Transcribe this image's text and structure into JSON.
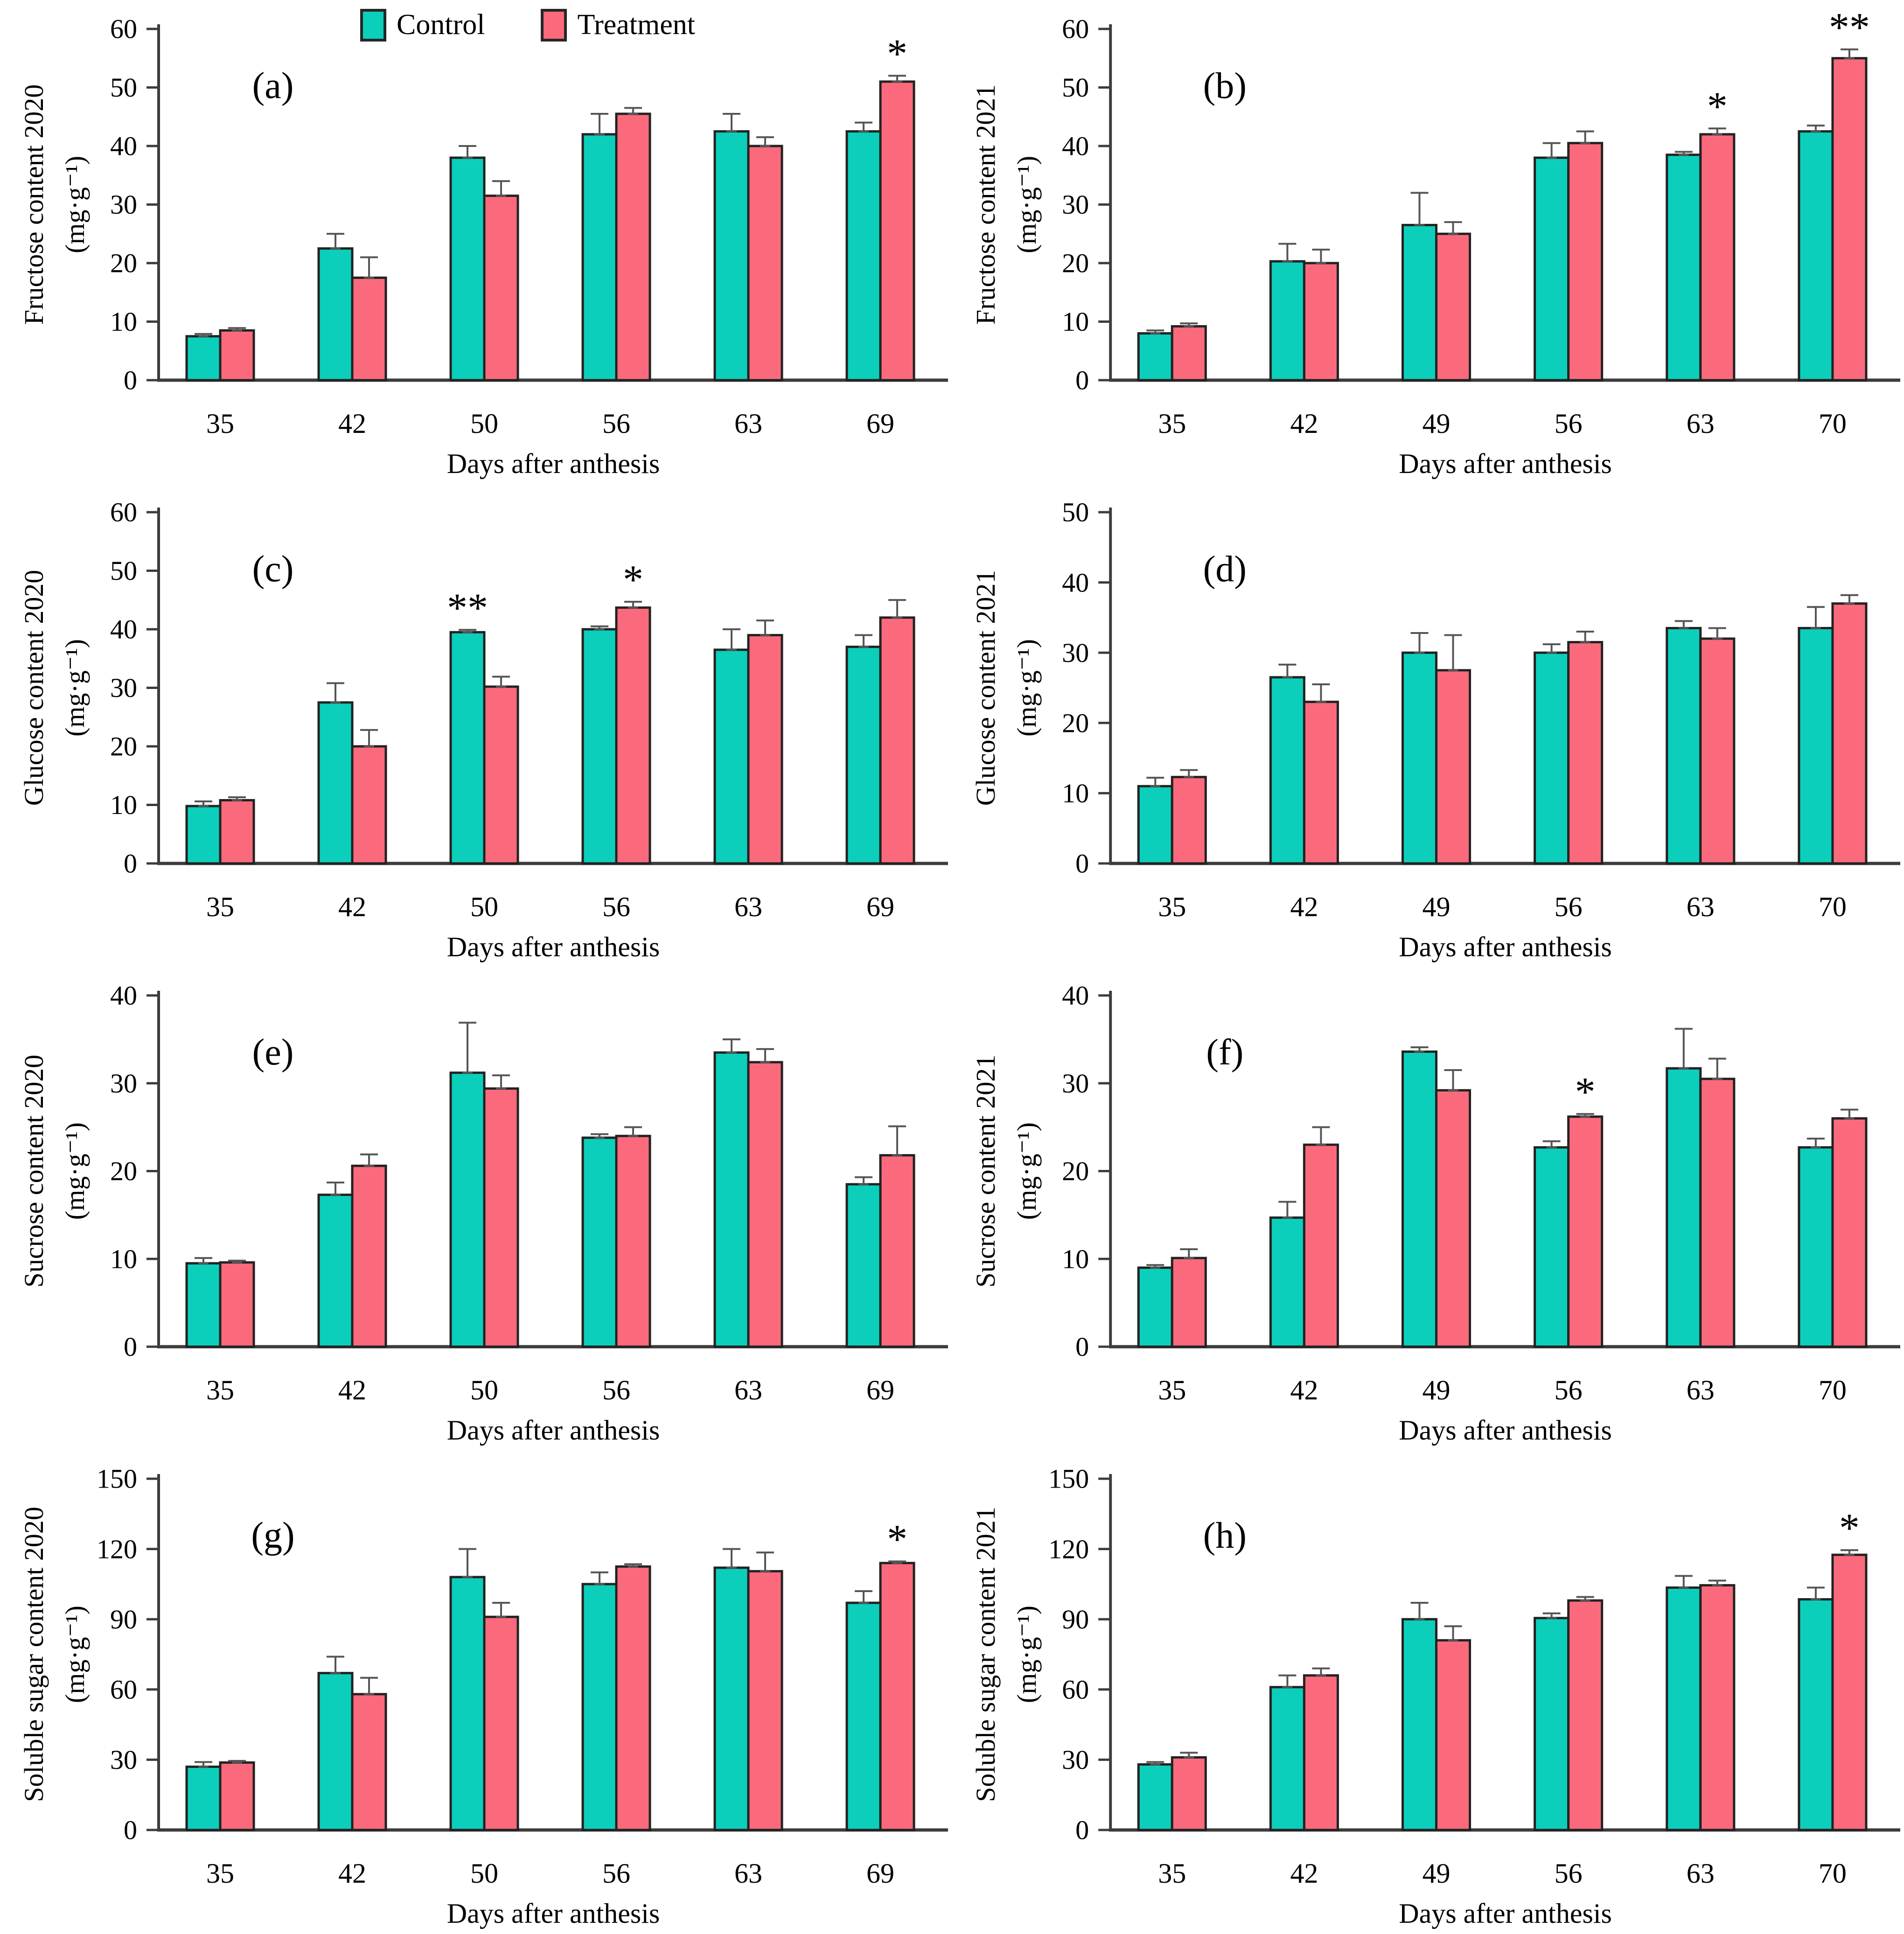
{
  "legend": {
    "items": [
      {
        "label": "Control",
        "color": "#0BCFBB"
      },
      {
        "label": "Treatment",
        "color": "#FB6A7C"
      }
    ]
  },
  "colors": {
    "control": "#0BCFBB",
    "treatment": "#FB6A7C",
    "bar_outline": "#222222",
    "axis": "#3C3C3C",
    "error_bar": "#555555",
    "text": "#000000"
  },
  "chart_data": [
    {
      "type": "bar",
      "letter": "(a)",
      "ylabel": "Fructose content 2020",
      "unit": "(mg·g⁻¹)",
      "xlabel": "Days after anthesis",
      "ylim": [
        0,
        60
      ],
      "ystep": 10,
      "grid": false,
      "categories": [
        "35",
        "42",
        "50",
        "56",
        "63",
        "69"
      ],
      "series": [
        {
          "name": "Control",
          "values": [
            7.5,
            22.5,
            38.0,
            42.0,
            42.5,
            42.5
          ],
          "errors": [
            0.4,
            2.5,
            2.0,
            3.5,
            3.0,
            1.5
          ]
        },
        {
          "name": "Treatment",
          "values": [
            8.5,
            17.5,
            31.5,
            45.5,
            40.0,
            51.0
          ],
          "errors": [
            0.4,
            3.5,
            2.5,
            1.0,
            1.5,
            1.0
          ]
        }
      ],
      "significance": [
        {
          "category": "69",
          "label": "*"
        }
      ]
    },
    {
      "type": "bar",
      "letter": "(b)",
      "ylabel": "Fructose content 2021",
      "unit": "(mg·g⁻¹)",
      "xlabel": "Days after anthesis",
      "ylim": [
        0,
        60
      ],
      "ystep": 10,
      "grid": false,
      "categories": [
        "35",
        "42",
        "49",
        "56",
        "63",
        "70"
      ],
      "series": [
        {
          "name": "Control",
          "values": [
            8.0,
            20.3,
            26.5,
            38.0,
            38.5,
            42.5
          ],
          "errors": [
            0.5,
            3.0,
            5.5,
            2.5,
            0.5,
            1.0
          ]
        },
        {
          "name": "Treatment",
          "values": [
            9.2,
            20.0,
            25.0,
            40.5,
            42.0,
            55.0
          ],
          "errors": [
            0.5,
            2.3,
            2.0,
            2.0,
            1.0,
            1.5
          ]
        }
      ],
      "significance": [
        {
          "category": "63",
          "label": "*"
        },
        {
          "category": "70",
          "label": "**"
        }
      ]
    },
    {
      "type": "bar",
      "letter": "(c)",
      "ylabel": "Glucose content 2020",
      "unit": "(mg·g⁻¹)",
      "xlabel": "Days after anthesis",
      "ylim": [
        0,
        60
      ],
      "ystep": 10,
      "grid": false,
      "categories": [
        "35",
        "42",
        "50",
        "56",
        "63",
        "69"
      ],
      "series": [
        {
          "name": "Control",
          "values": [
            9.8,
            27.5,
            39.5,
            40.0,
            36.5,
            37.0
          ],
          "errors": [
            0.8,
            3.3,
            0.4,
            0.5,
            3.5,
            2.0
          ]
        },
        {
          "name": "Treatment",
          "values": [
            10.8,
            20.0,
            30.2,
            43.7,
            39.0,
            42.0
          ],
          "errors": [
            0.5,
            2.8,
            1.7,
            1.0,
            2.5,
            3.0
          ]
        }
      ],
      "significance": [
        {
          "category": "50",
          "label": "**"
        },
        {
          "category": "56",
          "label": "*"
        }
      ]
    },
    {
      "type": "bar",
      "letter": "(d)",
      "ylabel": "Glucose content 2021",
      "unit": "(mg·g⁻¹)",
      "xlabel": "Days after anthesis",
      "ylim": [
        0,
        50
      ],
      "ystep": 10,
      "grid": false,
      "categories": [
        "35",
        "42",
        "49",
        "56",
        "63",
        "70"
      ],
      "series": [
        {
          "name": "Control",
          "values": [
            11.0,
            26.5,
            30.0,
            30.0,
            33.5,
            33.5
          ],
          "errors": [
            1.2,
            1.8,
            2.8,
            1.2,
            1.0,
            3.0
          ]
        },
        {
          "name": "Treatment",
          "values": [
            12.3,
            23.0,
            27.5,
            31.5,
            32.0,
            37.0
          ],
          "errors": [
            1.0,
            2.5,
            5.0,
            1.5,
            1.5,
            1.2
          ]
        }
      ],
      "significance": []
    },
    {
      "type": "bar",
      "letter": "(e)",
      "ylabel": "Sucrose content 2020",
      "unit": "(mg·g⁻¹)",
      "xlabel": "Days after anthesis",
      "ylim": [
        0,
        40
      ],
      "ystep": 10,
      "grid": false,
      "categories": [
        "35",
        "42",
        "50",
        "56",
        "63",
        "69"
      ],
      "series": [
        {
          "name": "Control",
          "values": [
            9.5,
            17.3,
            31.2,
            23.8,
            33.5,
            18.5
          ],
          "errors": [
            0.6,
            1.4,
            5.7,
            0.4,
            1.5,
            0.8
          ]
        },
        {
          "name": "Treatment",
          "values": [
            9.6,
            20.6,
            29.4,
            24.0,
            32.4,
            21.8
          ],
          "errors": [
            0.2,
            1.3,
            1.5,
            1.0,
            1.5,
            3.3
          ]
        }
      ],
      "significance": []
    },
    {
      "type": "bar",
      "letter": "(f)",
      "ylabel": "Sucrose content 2021",
      "unit": "(mg·g⁻¹)",
      "xlabel": "Days after anthesis",
      "ylim": [
        0,
        40
      ],
      "ystep": 10,
      "grid": false,
      "categories": [
        "35",
        "42",
        "49",
        "56",
        "63",
        "70"
      ],
      "series": [
        {
          "name": "Control",
          "values": [
            9.0,
            14.7,
            33.6,
            22.7,
            31.7,
            22.7
          ],
          "errors": [
            0.3,
            1.8,
            0.5,
            0.7,
            4.5,
            1.0
          ]
        },
        {
          "name": "Treatment",
          "values": [
            10.1,
            23.0,
            29.2,
            26.2,
            30.5,
            26.0
          ],
          "errors": [
            1.0,
            2.0,
            2.3,
            0.3,
            2.3,
            1.0
          ]
        }
      ],
      "significance": [
        {
          "category": "56",
          "label": "*"
        }
      ]
    },
    {
      "type": "bar",
      "letter": "(g)",
      "ylabel": "Soluble sugar content 2020",
      "unit": "(mg·g⁻¹)",
      "xlabel": "Days after anthesis",
      "ylim": [
        0,
        150
      ],
      "ystep": 30,
      "grid": false,
      "categories": [
        "35",
        "42",
        "50",
        "56",
        "63",
        "69"
      ],
      "series": [
        {
          "name": "Control",
          "values": [
            27.0,
            67.0,
            108.0,
            105.0,
            112.0,
            97.0
          ],
          "errors": [
            2.0,
            7.0,
            12.0,
            5.0,
            8.0,
            5.0
          ]
        },
        {
          "name": "Treatment",
          "values": [
            28.8,
            58.0,
            91.0,
            112.5,
            110.5,
            114.0
          ],
          "errors": [
            0.7,
            7.0,
            6.0,
            1.0,
            8.0,
            0.7
          ]
        }
      ],
      "significance": [
        {
          "category": "69",
          "label": "*"
        }
      ]
    },
    {
      "type": "bar",
      "letter": "(h)",
      "ylabel": "Soluble sugar content 2021",
      "unit": "(mg·g⁻¹)",
      "xlabel": "Days after anthesis",
      "ylim": [
        0,
        150
      ],
      "ystep": 30,
      "grid": false,
      "categories": [
        "35",
        "42",
        "49",
        "56",
        "63",
        "70"
      ],
      "series": [
        {
          "name": "Control",
          "values": [
            28.0,
            61.0,
            90.0,
            90.5,
            103.5,
            98.5
          ],
          "errors": [
            1.0,
            5.0,
            7.0,
            2.0,
            5.0,
            5.0
          ]
        },
        {
          "name": "Treatment",
          "values": [
            31.0,
            66.0,
            81.0,
            98.0,
            104.5,
            117.5
          ],
          "errors": [
            2.0,
            3.0,
            6.0,
            1.5,
            2.0,
            2.0
          ]
        }
      ],
      "significance": [
        {
          "category": "70",
          "label": "*"
        }
      ]
    }
  ]
}
